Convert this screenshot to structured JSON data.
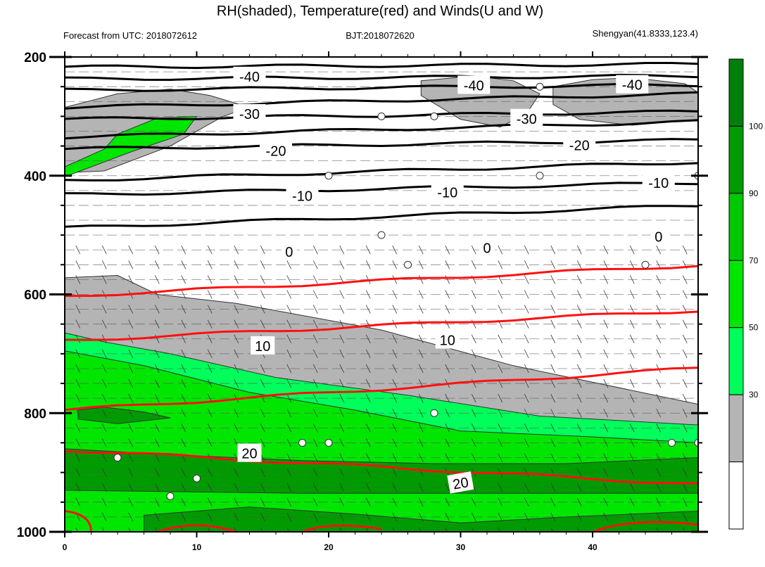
{
  "header": {
    "title": "RH(shaded), Temperature(red) and Winds(U and W)",
    "left_info": "Forecast from UTC: 2018072612",
    "center_info": "BJT:2018072620",
    "right_info": "Shengyan(41.8333,123.4)"
  },
  "chart_data": {
    "type": "contour",
    "title": "RH(shaded), Temperature(red) and Winds(U and W)",
    "xlabel": "",
    "ylabel": "",
    "xlim": [
      0,
      48
    ],
    "ylim": [
      1000,
      200
    ],
    "x_ticks": [
      "0",
      "10",
      "20",
      "30",
      "40"
    ],
    "y_ticks": [
      "200",
      "400",
      "600",
      "800",
      "1000"
    ],
    "colorbar": {
      "levels": [
        "30",
        "50",
        "70",
        "90",
        "100"
      ],
      "colors": [
        "#ffffff",
        "#b4b4b4",
        "#00ff5a",
        "#00e600",
        "#00c800",
        "#009b00",
        "#00800a"
      ]
    },
    "temperature_contour_labels": [
      "-40",
      "-40",
      "-40",
      "-30",
      "-30",
      "-20",
      "-20",
      "-10",
      "-10",
      "-10",
      "0",
      "0",
      "0",
      "10",
      "10",
      "20",
      "20"
    ],
    "colors": {
      "temperature_positive": "#ff1010",
      "temperature_negative": "#000000"
    },
    "black_isotherms": [
      {
        "p": [
          217,
          212
        ]
      },
      {
        "p": [
          237,
          232
        ]
      },
      {
        "p": [
          256,
          247
        ]
      },
      {
        "p": [
          285,
          262
        ]
      },
      {
        "p": [
          305,
          292
        ]
      },
      {
        "p": [
          335,
          309
        ]
      },
      {
        "p": [
          355,
          340
        ]
      },
      {
        "p": [
          408,
          377
        ]
      },
      {
        "p": [
          432,
          412
        ]
      },
      {
        "p": [
          488,
          450
        ]
      }
    ],
    "red_isotherms": [
      {
        "p": [
          603,
          551
        ]
      },
      {
        "p": [
          678,
          627
        ]
      },
      {
        "p": [
          795,
          724
        ]
      },
      {
        "p": [
          862,
          920
        ]
      }
    ],
    "rh_regions": [
      {
        "level": "30-50",
        "poly": [
          [
            0,
            572
          ],
          [
            4,
            568
          ],
          [
            7,
            600
          ],
          [
            13,
            615
          ],
          [
            24,
            660
          ],
          [
            34,
            720
          ],
          [
            48,
            785
          ],
          [
            48,
            1000
          ],
          [
            0,
            1000
          ]
        ]
      },
      {
        "level": "50-70",
        "poly": [
          [
            0,
            665
          ],
          [
            3,
            680
          ],
          [
            8,
            700
          ],
          [
            16,
            740
          ],
          [
            26,
            770
          ],
          [
            36,
            805
          ],
          [
            48,
            820
          ],
          [
            48,
            1000
          ],
          [
            0,
            1000
          ]
        ]
      },
      {
        "level": "70-90",
        "poly": [
          [
            0,
            695
          ],
          [
            6,
            720
          ],
          [
            14,
            765
          ],
          [
            22,
            795
          ],
          [
            30,
            830
          ],
          [
            40,
            840
          ],
          [
            48,
            850
          ],
          [
            48,
            1000
          ],
          [
            0,
            1000
          ]
        ]
      },
      {
        "level": "90-100",
        "poly": [
          [
            0,
            860
          ],
          [
            8,
            870
          ],
          [
            18,
            880
          ],
          [
            28,
            885
          ],
          [
            38,
            885
          ],
          [
            48,
            875
          ],
          [
            48,
            935
          ],
          [
            30,
            935
          ],
          [
            18,
            935
          ],
          [
            0,
            930
          ]
        ]
      },
      {
        "level": "90-100",
        "poly": [
          [
            6,
            972
          ],
          [
            14,
            958
          ],
          [
            22,
            970
          ],
          [
            30,
            985
          ],
          [
            38,
            975
          ],
          [
            48,
            965
          ],
          [
            48,
            1000
          ],
          [
            6,
            1000
          ]
        ]
      },
      {
        "level": "90-100",
        "poly": [
          [
            1,
            795
          ],
          [
            3,
            790
          ],
          [
            6,
            798
          ],
          [
            8,
            808
          ],
          [
            4,
            818
          ],
          [
            1,
            810
          ]
        ]
      },
      {
        "level": "30-50",
        "poly": [
          [
            0,
            285
          ],
          [
            4,
            262
          ],
          [
            8,
            254
          ],
          [
            11,
            265
          ],
          [
            14,
            285
          ],
          [
            12,
            300
          ],
          [
            8,
            350
          ],
          [
            3,
            392
          ],
          [
            0,
            395
          ]
        ]
      },
      {
        "level": "70-90",
        "poly": [
          [
            0,
            385
          ],
          [
            3,
            355
          ],
          [
            4,
            330
          ],
          [
            7,
            303
          ],
          [
            10,
            300
          ],
          [
            9,
            330
          ],
          [
            5,
            360
          ],
          [
            0,
            402
          ]
        ]
      },
      {
        "level": "30-50",
        "poly": [
          [
            27,
            240
          ],
          [
            31,
            232
          ],
          [
            34,
            240
          ],
          [
            36,
            262
          ],
          [
            35,
            295
          ],
          [
            33,
            318
          ],
          [
            30,
            305
          ],
          [
            27,
            265
          ]
        ]
      },
      {
        "level": "30-50",
        "poly": [
          [
            37,
            250
          ],
          [
            40,
            238
          ],
          [
            43,
            235
          ],
          [
            47,
            245
          ],
          [
            48,
            260
          ],
          [
            48,
            305
          ],
          [
            43,
            315
          ],
          [
            39,
            305
          ],
          [
            37,
            280
          ]
        ]
      }
    ]
  }
}
